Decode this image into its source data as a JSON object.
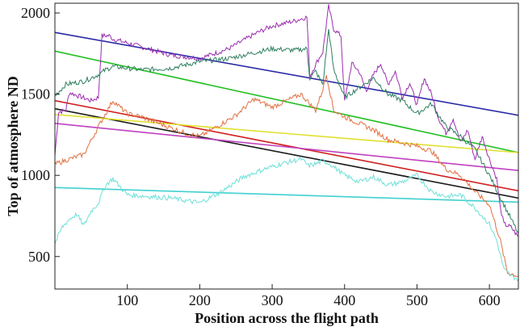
{
  "chart_data": {
    "type": "line",
    "title": "",
    "xlabel": "Position across the flight path",
    "ylabel": "Top of atmosphere ND",
    "xlim": [
      0,
      640
    ],
    "ylim": [
      300,
      2060
    ],
    "xticks": [
      100,
      200,
      300,
      400,
      500,
      600
    ],
    "yticks": [
      500,
      1000,
      1500,
      2000
    ],
    "grid": false,
    "legend": "none",
    "series": [
      {
        "color": "#2b2aa6",
        "kind": "trend",
        "x": [
          0,
          640
        ],
        "values": [
          1880,
          1370
        ]
      },
      {
        "color": "#22c022",
        "kind": "trend",
        "x": [
          0,
          640
        ],
        "values": [
          1765,
          1140
        ]
      },
      {
        "color": "#1a1a1a",
        "kind": "trend",
        "x": [
          0,
          640
        ],
        "values": [
          1410,
          860
        ]
      },
      {
        "color": "#d02020",
        "kind": "trend",
        "x": [
          0,
          640
        ],
        "values": [
          1460,
          905
        ]
      },
      {
        "color": "#e0e030",
        "kind": "trend",
        "x": [
          0,
          640
        ],
        "values": [
          1375,
          1140
        ]
      },
      {
        "color": "#c040c0",
        "kind": "trend",
        "x": [
          0,
          640
        ],
        "values": [
          1320,
          1030
        ]
      },
      {
        "color": "#40d0d0",
        "kind": "trend",
        "x": [
          0,
          640
        ],
        "values": [
          925,
          835
        ]
      },
      {
        "color": "#9b2fb0",
        "kind": "data",
        "x": [
          0,
          5,
          15,
          20,
          50,
          60,
          65,
          75,
          80,
          120,
          160,
          200,
          240,
          260,
          280,
          300,
          330,
          348,
          352,
          362,
          370,
          374,
          378,
          385,
          395,
          400,
          410,
          420,
          430,
          440,
          450,
          460,
          470,
          480,
          490,
          500,
          510,
          520,
          530,
          540,
          550,
          560,
          570,
          580,
          590,
          600,
          610,
          615,
          620,
          630,
          640
        ],
        "values": [
          1120,
          1390,
          1400,
          1510,
          1460,
          1480,
          1860,
          1860,
          1840,
          1790,
          1740,
          1720,
          1780,
          1830,
          1880,
          1920,
          1950,
          1975,
          1610,
          1700,
          1760,
          1900,
          2040,
          1900,
          1860,
          1450,
          1690,
          1640,
          1520,
          1620,
          1690,
          1560,
          1640,
          1480,
          1570,
          1430,
          1600,
          1500,
          1350,
          1260,
          1350,
          1200,
          1280,
          1100,
          1240,
          1100,
          980,
          800,
          700,
          680,
          620
        ]
      },
      {
        "color": "#2f7f5f",
        "kind": "data",
        "x": [
          0,
          15,
          40,
          60,
          70,
          80,
          120,
          160,
          200,
          240,
          280,
          300,
          330,
          348,
          352,
          360,
          370,
          378,
          385,
          400,
          420,
          440,
          460,
          480,
          500,
          520,
          540,
          560,
          580,
          600,
          620,
          640
        ],
        "values": [
          1490,
          1560,
          1580,
          1620,
          1650,
          1670,
          1650,
          1660,
          1700,
          1720,
          1760,
          1780,
          1770,
          1780,
          1600,
          1640,
          1560,
          1900,
          1650,
          1480,
          1540,
          1600,
          1500,
          1460,
          1380,
          1440,
          1300,
          1240,
          1160,
          1000,
          820,
          640
        ]
      },
      {
        "color": "#e07040",
        "kind": "data",
        "x": [
          0,
          20,
          40,
          60,
          80,
          100,
          120,
          150,
          180,
          200,
          220,
          250,
          275,
          300,
          320,
          340,
          360,
          370,
          375,
          385,
          400,
          420,
          440,
          460,
          480,
          500,
          520,
          540,
          560,
          580,
          600,
          615,
          625,
          640
        ],
        "values": [
          1070,
          1100,
          1130,
          1300,
          1460,
          1380,
          1360,
          1310,
          1260,
          1240,
          1290,
          1370,
          1470,
          1420,
          1460,
          1500,
          1400,
          1530,
          1620,
          1400,
          1360,
          1320,
          1280,
          1220,
          1200,
          1180,
          1150,
          1040,
          1000,
          900,
          820,
          600,
          400,
          380
        ]
      },
      {
        "color": "#6fe0d8",
        "kind": "data",
        "x": [
          0,
          10,
          20,
          30,
          40,
          50,
          60,
          70,
          80,
          100,
          130,
          160,
          200,
          230,
          260,
          290,
          320,
          340,
          350,
          360,
          370,
          380,
          400,
          420,
          440,
          460,
          480,
          500,
          520,
          540,
          560,
          580,
          600,
          610,
          620,
          630,
          640
        ],
        "values": [
          580,
          680,
          730,
          760,
          690,
          780,
          830,
          940,
          980,
          880,
          870,
          860,
          830,
          900,
          990,
          1040,
          1080,
          1100,
          1060,
          1070,
          1090,
          1070,
          1000,
          960,
          990,
          940,
          960,
          1000,
          900,
          870,
          880,
          800,
          700,
          600,
          420,
          380,
          360
        ]
      }
    ]
  }
}
